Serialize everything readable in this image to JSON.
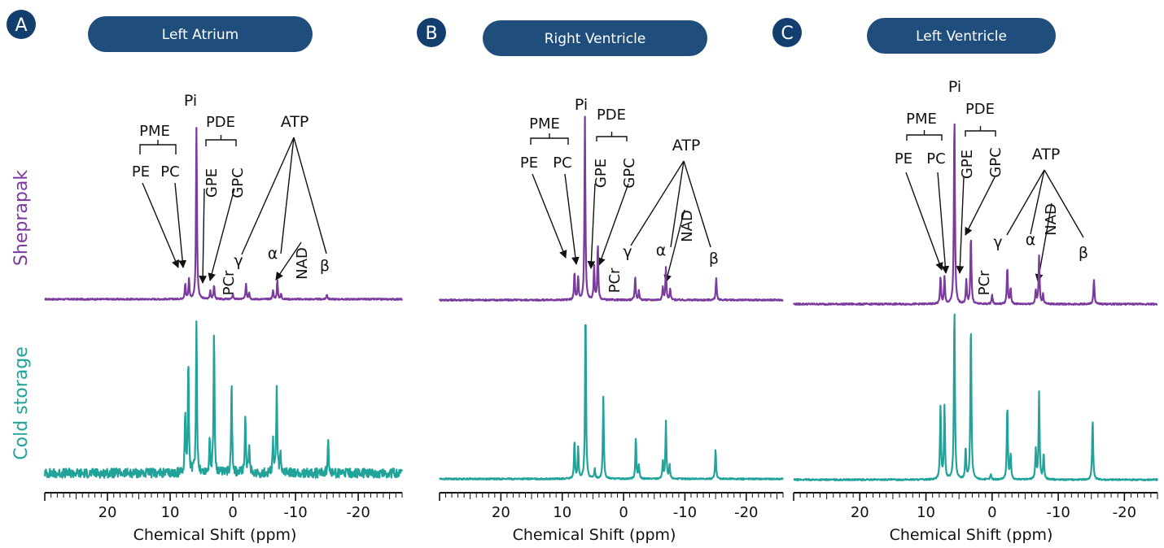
{
  "figure": {
    "row_labels": [
      "Sheprapak",
      "Cold storage"
    ],
    "axis_label": "Chemical Shift (ppm)",
    "tick_labels": [
      "20",
      "10",
      "0",
      "-10",
      "-20"
    ],
    "colors": {
      "sheprapak": "#7b3a9e",
      "cold_storage": "#21a39a",
      "badge": "#123f6e",
      "pill": "#1f4e7d"
    }
  },
  "chart_data": [
    {
      "type": "line",
      "panel": "A",
      "title": "Left Atrium",
      "xlabel": "Chemical Shift (ppm)",
      "xlim": [
        30,
        -27
      ],
      "xticks": [
        20,
        10,
        0,
        -10,
        -20
      ],
      "series": [
        {
          "name": "Sheprapak",
          "noise": 0.004,
          "peaks": [
            [
              7.6,
              0.09
            ],
            [
              7.0,
              0.12
            ],
            [
              5.8,
              1.0
            ],
            [
              3.6,
              0.05
            ],
            [
              3.0,
              0.08
            ],
            [
              0.0,
              0.03
            ],
            [
              -2.1,
              0.09
            ],
            [
              -2.6,
              0.04
            ],
            [
              -6.4,
              0.05
            ],
            [
              -7.1,
              0.11
            ],
            [
              -7.7,
              0.03
            ],
            [
              -15.0,
              0.03
            ]
          ]
        },
        {
          "name": "Cold storage",
          "noise": 0.03,
          "peaks": [
            [
              7.6,
              0.38
            ],
            [
              7.1,
              0.72
            ],
            [
              5.8,
              1.0
            ],
            [
              3.7,
              0.22
            ],
            [
              3.0,
              0.92
            ],
            [
              0.2,
              0.62
            ],
            [
              -2.0,
              0.4
            ],
            [
              -2.6,
              0.18
            ],
            [
              -6.4,
              0.22
            ],
            [
              -7.0,
              0.56
            ],
            [
              -7.6,
              0.12
            ],
            [
              -15.2,
              0.24
            ]
          ]
        }
      ],
      "annotations": [
        "Pi",
        "PME",
        "PDE",
        "PE",
        "PC",
        "GPE",
        "GPC",
        "ATP",
        "PCr",
        "NAD",
        "γ",
        "α",
        "β"
      ]
    },
    {
      "type": "line",
      "panel": "B",
      "title": "Right Ventricle",
      "xlabel": "Chemical Shift (ppm)",
      "xlim": [
        30,
        -26
      ],
      "xticks": [
        20,
        10,
        0,
        -10,
        -20
      ],
      "series": [
        {
          "name": "Sheprapak",
          "noise": 0.004,
          "peaks": [
            [
              8.0,
              0.15
            ],
            [
              7.4,
              0.12
            ],
            [
              6.3,
              1.0
            ],
            [
              4.8,
              0.18
            ],
            [
              4.2,
              0.3
            ],
            [
              -1.9,
              0.13
            ],
            [
              -2.5,
              0.05
            ],
            [
              -6.4,
              0.07
            ],
            [
              -6.9,
              0.18
            ],
            [
              -7.6,
              0.06
            ],
            [
              -15.1,
              0.12
            ]
          ]
        },
        {
          "name": "Cold storage",
          "noise": 0.004,
          "peaks": [
            [
              8.0,
              0.22
            ],
            [
              7.4,
              0.18
            ],
            [
              6.2,
              1.0
            ],
            [
              4.7,
              0.06
            ],
            [
              3.3,
              0.48
            ],
            [
              -2.0,
              0.24
            ],
            [
              -2.5,
              0.08
            ],
            [
              -6.4,
              0.1
            ],
            [
              -6.9,
              0.33
            ],
            [
              -7.5,
              0.08
            ],
            [
              -15.0,
              0.17
            ]
          ]
        }
      ],
      "annotations": [
        "Pi",
        "PME",
        "PDE",
        "PE",
        "PC",
        "GPE",
        "GPC",
        "ATP",
        "PCr",
        "NAD",
        "γ",
        "α",
        "β"
      ]
    },
    {
      "type": "line",
      "panel": "C",
      "title": "Left Ventricle",
      "xlabel": "Chemical Shift (ppm)",
      "xlim": [
        30,
        -25
      ],
      "xticks": [
        20,
        10,
        0,
        -10,
        -20
      ],
      "series": [
        {
          "name": "Sheprapak",
          "noise": 0.004,
          "peaks": [
            [
              7.8,
              0.14
            ],
            [
              7.2,
              0.14
            ],
            [
              5.7,
              1.0
            ],
            [
              3.9,
              0.12
            ],
            [
              3.2,
              0.36
            ],
            [
              0.0,
              0.05
            ],
            [
              -2.3,
              0.19
            ],
            [
              -2.8,
              0.08
            ],
            [
              -6.6,
              0.07
            ],
            [
              -7.1,
              0.25
            ],
            [
              -7.7,
              0.05
            ],
            [
              -15.4,
              0.13
            ]
          ]
        },
        {
          "name": "Cold storage",
          "noise": 0.004,
          "peaks": [
            [
              7.8,
              0.43
            ],
            [
              7.2,
              0.42
            ],
            [
              5.7,
              1.0
            ],
            [
              4.0,
              0.18
            ],
            [
              3.2,
              0.91
            ],
            [
              0.2,
              0.03
            ],
            [
              -2.3,
              0.43
            ],
            [
              -2.8,
              0.14
            ],
            [
              -6.6,
              0.17
            ],
            [
              -7.1,
              0.5
            ],
            [
              -7.8,
              0.15
            ],
            [
              -15.2,
              0.35
            ]
          ]
        }
      ],
      "annotations": [
        "Pi",
        "PME",
        "PDE",
        "PE",
        "PC",
        "GPE",
        "GPC",
        "ATP",
        "PCr",
        "NAD",
        "γ",
        "α",
        "β"
      ]
    }
  ]
}
